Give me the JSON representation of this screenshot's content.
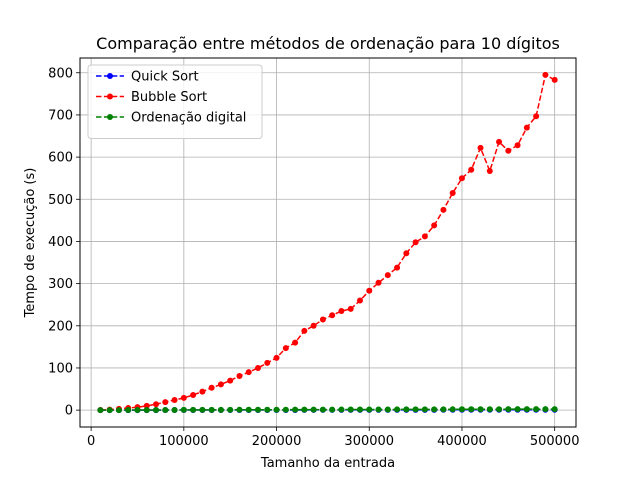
{
  "chart_data": {
    "type": "line",
    "title": "Comparação entre métodos de ordenação para 10 dígitos",
    "xlabel": "Tamanho da entrada",
    "ylabel": "Tempo de execução (s)",
    "xlim": [
      -12000,
      523000
    ],
    "ylim": [
      -40,
      835
    ],
    "xticks": [
      0,
      100000,
      200000,
      300000,
      400000,
      500000
    ],
    "yticks": [
      0,
      100,
      200,
      300,
      400,
      500,
      600,
      700,
      800
    ],
    "grid": true,
    "legend_position": "top-left",
    "x": [
      10000,
      20000,
      30000,
      40000,
      50000,
      60000,
      70000,
      80000,
      90000,
      100000,
      110000,
      120000,
      130000,
      140000,
      150000,
      160000,
      170000,
      180000,
      190000,
      200000,
      210000,
      220000,
      230000,
      240000,
      250000,
      260000,
      270000,
      280000,
      290000,
      300000,
      310000,
      320000,
      330000,
      340000,
      350000,
      360000,
      370000,
      380000,
      390000,
      400000,
      410000,
      420000,
      430000,
      440000,
      450000,
      460000,
      470000,
      480000,
      490000,
      500000
    ],
    "series": [
      {
        "name": "Quick Sort",
        "color": "#0000ff",
        "values": [
          0.02,
          0.04,
          0.06,
          0.08,
          0.1,
          0.12,
          0.14,
          0.16,
          0.18,
          0.2,
          0.22,
          0.24,
          0.26,
          0.28,
          0.3,
          0.32,
          0.34,
          0.36,
          0.38,
          0.4,
          0.42,
          0.44,
          0.46,
          0.48,
          0.5,
          0.52,
          0.54,
          0.56,
          0.58,
          0.6,
          0.62,
          0.64,
          0.66,
          0.68,
          0.7,
          0.72,
          0.74,
          0.76,
          0.78,
          0.8,
          0.82,
          0.84,
          0.86,
          0.88,
          0.9,
          0.92,
          0.94,
          0.96,
          0.98,
          1.0
        ]
      },
      {
        "name": "Bubble Sort",
        "color": "#ff0000",
        "values": [
          0.3,
          1.2,
          3,
          5,
          7,
          10,
          14,
          19,
          24,
          29,
          36,
          44,
          53,
          61,
          70,
          81,
          90,
          100,
          112,
          124,
          147,
          160,
          188,
          200,
          215,
          225,
          235,
          240,
          260,
          283,
          302,
          320,
          338,
          372,
          398,
          412,
          438,
          475,
          515,
          550,
          570,
          622,
          567,
          636,
          615,
          628,
          670,
          697,
          795,
          783
        ]
      },
      {
        "name": "Ordenação digital",
        "color": "#008000",
        "values": [
          0.05,
          0.1,
          0.15,
          0.2,
          0.25,
          0.3,
          0.35,
          0.4,
          0.45,
          0.5,
          0.55,
          0.6,
          0.65,
          0.7,
          0.75,
          0.8,
          0.85,
          0.9,
          0.95,
          1.0,
          1.05,
          1.1,
          1.15,
          1.2,
          1.25,
          1.3,
          1.35,
          1.4,
          1.45,
          1.5,
          1.55,
          1.6,
          1.65,
          1.7,
          1.75,
          1.8,
          1.85,
          1.9,
          1.95,
          2.0,
          2.05,
          2.1,
          2.15,
          2.2,
          2.25,
          2.3,
          2.35,
          2.4,
          2.45,
          2.5
        ]
      }
    ]
  }
}
